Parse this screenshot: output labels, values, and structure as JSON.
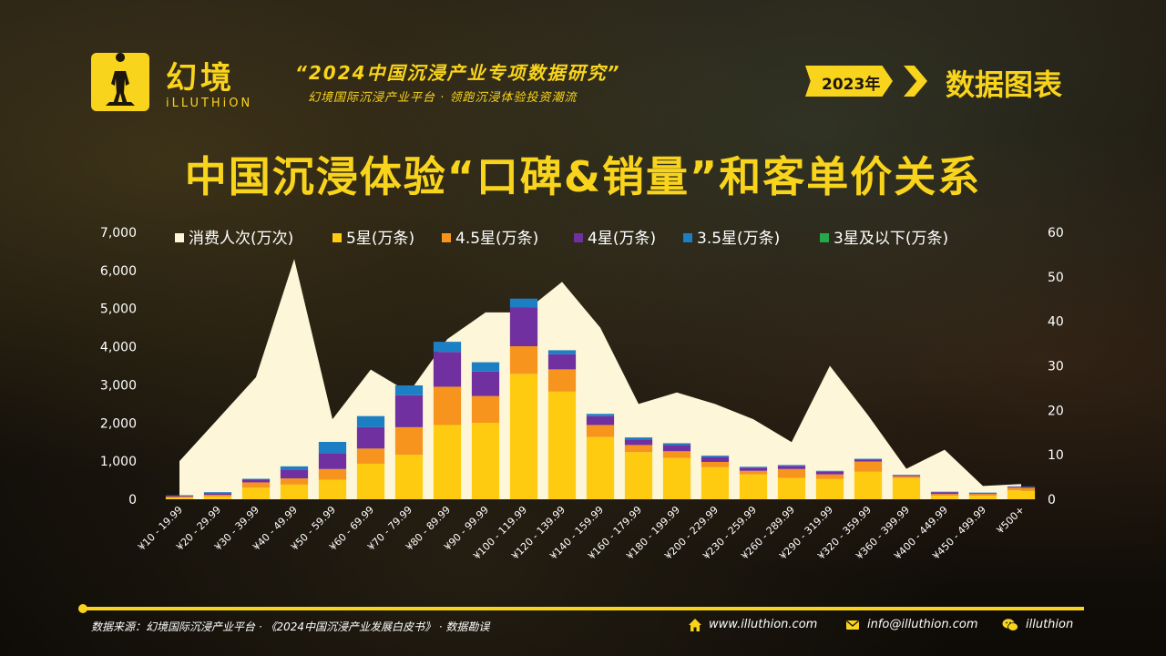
{
  "brand": {
    "name_cn": "幻境",
    "name_en": "iLLUTHiON"
  },
  "header": {
    "main": "“2024中国沉浸产业专项数据研究”",
    "sub": "幻境国际沉浸产业平台 · 领跑沉浸体验投资潮流",
    "year_badge": "2023年",
    "section": "数据图表",
    "icons": [
      "person-silhouette-icon",
      "chevron-right-icon"
    ]
  },
  "colors": {
    "accent": "#f9d41c",
    "area": "#fdf6d8",
    "five_star": "#fecb10",
    "four_five_star": "#f7941d",
    "four_star": "#7030a0",
    "three_five_star": "#1c7fc4",
    "three_below": "#22a94a"
  },
  "chart_data": {
    "type": "bar",
    "title": "中国沉浸体验“口碑&销量”和客单价关系",
    "categories": [
      "¥10 - 19.99",
      "¥20 - 29.99",
      "¥30 - 39.99",
      "¥40 - 49.99",
      "¥50 - 59.99",
      "¥60 - 69.99",
      "¥70 - 79.99",
      "¥80 - 89.99",
      "¥90 - 99.99",
      "¥100 - 119.99",
      "¥120 - 139.99",
      "¥140 - 159.99",
      "¥160 - 179.99",
      "¥180 - 199.99",
      "¥200 - 229.99",
      "¥230 - 259.99",
      "¥260 - 289.99",
      "¥290 - 319.99",
      "¥320 - 359.99",
      "¥360 - 399.99",
      "¥400 - 449.99",
      "¥450 - 499.99",
      "¥500+"
    ],
    "area_series": {
      "name": "消费人次(万次)",
      "values": [
        1000,
        2100,
        3200,
        6300,
        2100,
        3400,
        2800,
        4200,
        4900,
        4900,
        5700,
        4500,
        2500,
        2800,
        2500,
        2100,
        1500,
        3500,
        2200,
        800,
        1300,
        350,
        400
      ]
    },
    "stacked_series": [
      {
        "name": "5星(万条)",
        "values": [
          0.4,
          0.6,
          2.6,
          3.3,
          4.4,
          8.0,
          10.0,
          16.7,
          17.2,
          28.2,
          24.2,
          14.0,
          10.6,
          9.3,
          7.2,
          5.6,
          4.8,
          4.6,
          6.2,
          4.8,
          0.8,
          0.8,
          2.0
        ]
      },
      {
        "name": "4.5星(万条)",
        "values": [
          0.2,
          0.4,
          1.2,
          1.4,
          2.4,
          3.4,
          6.2,
          8.6,
          6.0,
          6.2,
          5.0,
          2.7,
          1.6,
          1.5,
          1.2,
          0.8,
          2.0,
          1.0,
          2.3,
          0.4,
          0.4,
          0.4,
          0.6
        ]
      },
      {
        "name": "4星(万条)",
        "values": [
          0.2,
          0.4,
          0.6,
          2.0,
          3.6,
          4.8,
          7.2,
          7.8,
          5.5,
          8.7,
          3.4,
          2.0,
          1.2,
          1.4,
          1.1,
          0.7,
          0.7,
          0.6,
          0.4,
          0.2,
          0.4,
          0.2,
          0.2
        ]
      },
      {
        "name": "3.5星(万条)",
        "values": [
          0.1,
          0.2,
          0.2,
          0.7,
          2.5,
          2.5,
          2.2,
          2.3,
          2.1,
          2.0,
          0.9,
          0.5,
          0.5,
          0.4,
          0.3,
          0.2,
          0.2,
          0.2,
          0.2,
          0.1,
          0.1,
          0.1,
          0.1
        ]
      },
      {
        "name": "3星及以下(万条)",
        "values": [
          0,
          0,
          0,
          0,
          0,
          0,
          0,
          0,
          0,
          0,
          0,
          0,
          0,
          0,
          0,
          0,
          0,
          0,
          0,
          0,
          0,
          0,
          0
        ]
      }
    ],
    "y_left": {
      "min": 0,
      "max": 7000,
      "ticks": [
        "0",
        "1,000",
        "2,000",
        "3,000",
        "4,000",
        "5,000",
        "6,000",
        "7,000"
      ]
    },
    "y_right": {
      "min": 0,
      "max": 60,
      "ticks": [
        "0",
        "10",
        "20",
        "30",
        "40",
        "50",
        "60"
      ]
    },
    "legend_position": "top",
    "grid": false
  },
  "footer": {
    "source": "数据来源：幻境国际沉浸产业平台 · 《2024中国沉浸产业发展白皮书》 · 数据勘误",
    "website": "www.illuthion.com",
    "email": "info@illuthion.com",
    "wechat": "illuthion",
    "icons": [
      "home-icon",
      "mail-icon",
      "wechat-icon"
    ]
  }
}
